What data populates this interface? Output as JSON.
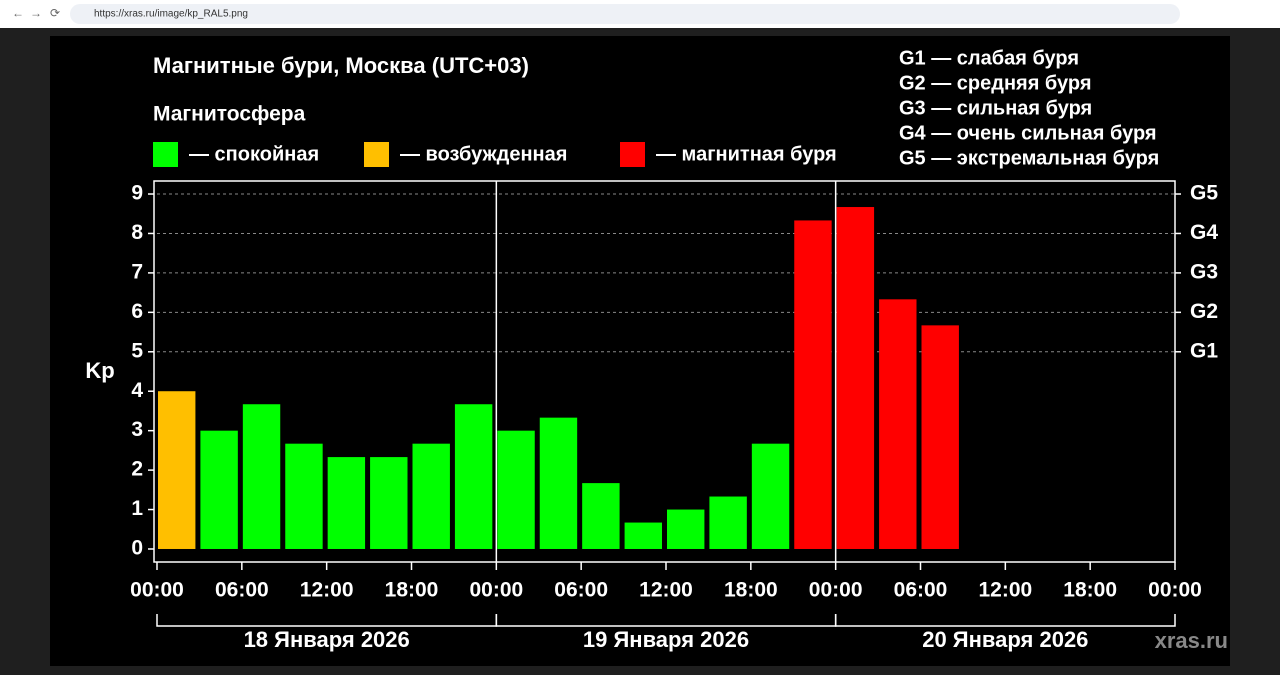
{
  "browser": {
    "url": "https://xras.ru/image/kp_RAL5.png"
  },
  "chart_data": {
    "type": "bar",
    "title": "Магнитные бури, Москва (UTC+03)",
    "legend_title": "Магнитосфера",
    "legend": [
      {
        "label": "— спокойная",
        "color": "#00ff00"
      },
      {
        "label": "— возбужденная",
        "color": "#ffbf00"
      },
      {
        "label": "— магнитная буря",
        "color": "#ff0000"
      }
    ],
    "g_scale": [
      "G1 — слабая буря",
      "G2 — средняя буря",
      "G3 — сильная буря",
      "G4 — очень сильная буря",
      "G5 — экстремальная буря"
    ],
    "y_label": "Kp",
    "values": [
      4.0,
      3.0,
      3.67,
      2.67,
      2.33,
      2.33,
      2.67,
      3.67,
      3.0,
      3.33,
      1.67,
      0.67,
      1.0,
      1.33,
      2.67,
      8.33,
      8.67,
      6.33,
      5.67,
      null,
      null,
      null,
      null,
      null
    ],
    "colors": [
      "#ffbf00",
      "#00ff00",
      "#00ff00",
      "#00ff00",
      "#00ff00",
      "#00ff00",
      "#00ff00",
      "#00ff00",
      "#00ff00",
      "#00ff00",
      "#00ff00",
      "#00ff00",
      "#00ff00",
      "#00ff00",
      "#00ff00",
      "#ff0000",
      "#ff0000",
      "#ff0000",
      "#ff0000",
      null,
      null,
      null,
      null,
      null
    ],
    "xlim": [
      0,
      72
    ],
    "xticks": [
      {
        "value": 0,
        "label": "00:00"
      },
      {
        "value": 6,
        "label": "06:00"
      },
      {
        "value": 12,
        "label": "12:00"
      },
      {
        "value": 18,
        "label": "18:00"
      },
      {
        "value": 24,
        "label": "00:00"
      },
      {
        "value": 30,
        "label": "06:00"
      },
      {
        "value": 36,
        "label": "12:00"
      },
      {
        "value": 42,
        "label": "18:00"
      },
      {
        "value": 48,
        "label": "00:00"
      },
      {
        "value": 54,
        "label": "06:00"
      },
      {
        "value": 60,
        "label": "12:00"
      },
      {
        "value": 66,
        "label": "18:00"
      },
      {
        "value": 72,
        "label": "00:00"
      }
    ],
    "days": [
      "18 Января 2026",
      "19 Января 2026",
      "20 Января 2026"
    ],
    "ylim": [
      -0.33,
      9.33
    ],
    "yticks": [
      0,
      1,
      2,
      3,
      4,
      5,
      6,
      7,
      8,
      9
    ],
    "y2lim": [
      -0.33,
      9.33
    ],
    "y2ticks": [
      {
        "value": 5,
        "label": "G1"
      },
      {
        "value": 6,
        "label": "G2"
      },
      {
        "value": 7,
        "label": "G3"
      },
      {
        "value": 8,
        "label": "G4"
      },
      {
        "value": 9,
        "label": "G5"
      }
    ],
    "grid": "y2",
    "watermark": "xras.ru"
  }
}
